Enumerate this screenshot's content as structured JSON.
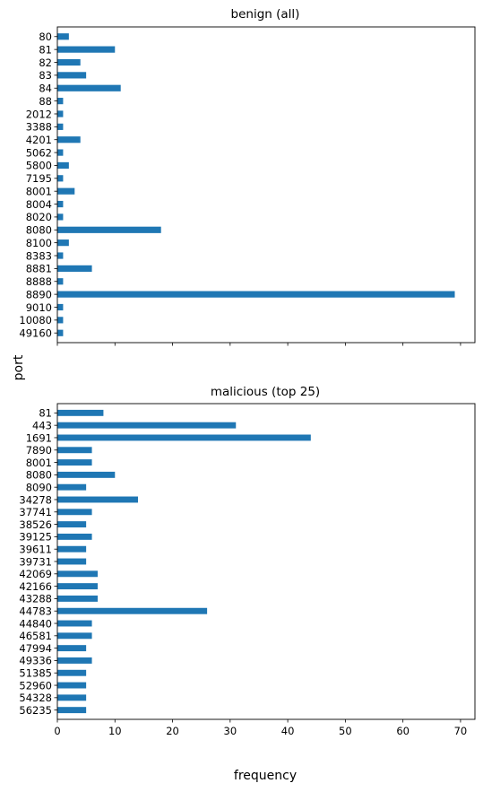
{
  "figure": {
    "ylabel": "port",
    "xlabel": "frequency",
    "bar_color": "#1f77b4",
    "xticks": [
      0,
      10,
      20,
      30,
      40,
      50,
      60,
      70
    ]
  },
  "chart_data": [
    {
      "type": "bar",
      "orientation": "horizontal",
      "title": "benign (all)",
      "categories": [
        "80",
        "81",
        "82",
        "83",
        "84",
        "88",
        "2012",
        "3388",
        "4201",
        "5062",
        "5800",
        "7195",
        "8001",
        "8004",
        "8020",
        "8080",
        "8100",
        "8383",
        "8881",
        "8888",
        "8890",
        "9010",
        "10080",
        "49160"
      ],
      "values": [
        2,
        10,
        4,
        5,
        11,
        1,
        1,
        1,
        4,
        1,
        2,
        1,
        3,
        1,
        1,
        18,
        2,
        1,
        6,
        1,
        69,
        1,
        1,
        1
      ],
      "xlim": [
        0,
        72.5
      ],
      "xtick_labels_visible": false
    },
    {
      "type": "bar",
      "orientation": "horizontal",
      "title": "malicious (top 25)",
      "categories": [
        "81",
        "443",
        "1691",
        "7890",
        "8001",
        "8080",
        "8090",
        "34278",
        "37741",
        "38526",
        "39125",
        "39611",
        "39731",
        "42069",
        "42166",
        "43288",
        "44783",
        "44840",
        "46581",
        "47994",
        "49336",
        "51385",
        "52960",
        "54328",
        "56235"
      ],
      "values": [
        8,
        31,
        44,
        6,
        6,
        10,
        5,
        14,
        6,
        5,
        6,
        5,
        5,
        7,
        7,
        7,
        26,
        6,
        6,
        5,
        6,
        5,
        5,
        5,
        5
      ],
      "xlim": [
        0,
        72.5
      ],
      "xtick_labels_visible": true
    }
  ]
}
